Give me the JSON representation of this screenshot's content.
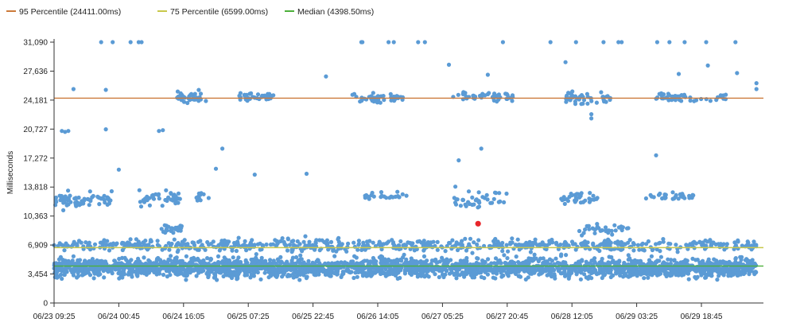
{
  "chart_data": {
    "type": "scatter",
    "title": "",
    "xlabel": "",
    "ylabel": "Milliseconds",
    "ylim": [
      0,
      31090
    ],
    "y_ticks": [
      "0",
      "3,454",
      "6,909",
      "10,363",
      "13,818",
      "17,272",
      "20,727",
      "24,181",
      "27,636",
      "31,090"
    ],
    "y_tick_values": [
      0,
      3454,
      6909,
      10363,
      13818,
      17272,
      20727,
      24181,
      27636,
      31090
    ],
    "x_ticks": [
      "06/23 09:25",
      "06/24 00:45",
      "06/24 16:05",
      "06/25 07:25",
      "06/25 22:45",
      "06/26 14:05",
      "06/27 05:25",
      "06/27 20:45",
      "06/28 12:05",
      "06/29 03:25",
      "06/29 18:45"
    ],
    "xlim_ticks": [
      0,
      10.85
    ],
    "grid": false,
    "legend_position": "top-left",
    "reference_lines": [
      {
        "name": "95 Percentile (24411.00ms)",
        "value": 24411.0,
        "color": "#cc7a3a"
      },
      {
        "name": "75 Percentile (6599.00ms)",
        "value": 6599.0,
        "color": "#c8c84a"
      },
      {
        "name": "Median (4398.50ms)",
        "value": 4398.5,
        "color": "#4caf3a"
      }
    ],
    "highlight_point": {
      "x_tick": 6.55,
      "y": 9450,
      "color": "#e8262b"
    },
    "point_color": "#5b9bd5",
    "series": [
      {
        "clusters": [
          {
            "x": [
              0,
              10.85
            ],
            "y_center": 4200,
            "y_spread": 1100,
            "count": 2600
          },
          {
            "x": [
              0,
              10.85
            ],
            "y_center": 6900,
            "y_spread": 700,
            "count": 650
          },
          {
            "x": [
              0,
              0.9
            ],
            "y_center": 12300,
            "y_spread": 900,
            "count": 70
          },
          {
            "x": [
              1.3,
              1.95
            ],
            "y_center": 12500,
            "y_spread": 900,
            "count": 45
          },
          {
            "x": [
              1.65,
              2.0
            ],
            "y_center": 8800,
            "y_spread": 500,
            "count": 30
          },
          {
            "x": [
              2.2,
              2.4
            ],
            "y_center": 12800,
            "y_spread": 500,
            "count": 10
          },
          {
            "x": [
              4.8,
              5.5
            ],
            "y_center": 12800,
            "y_spread": 400,
            "count": 25
          },
          {
            "x": [
              6.15,
              7.0
            ],
            "y_center": 12400,
            "y_spread": 1000,
            "count": 40
          },
          {
            "x": [
              7.8,
              8.4
            ],
            "y_center": 12500,
            "y_spread": 700,
            "count": 35
          },
          {
            "x": [
              8.1,
              8.9
            ],
            "y_center": 8800,
            "y_spread": 600,
            "count": 35
          },
          {
            "x": [
              9.1,
              9.9
            ],
            "y_center": 12700,
            "y_spread": 600,
            "count": 30
          },
          {
            "x": [
              1.9,
              2.35
            ],
            "y_center": 24400,
            "y_spread": 650,
            "count": 40
          },
          {
            "x": [
              2.85,
              3.4
            ],
            "y_center": 24500,
            "y_spread": 550,
            "count": 35
          },
          {
            "x": [
              4.6,
              5.4
            ],
            "y_center": 24500,
            "y_spread": 500,
            "count": 45
          },
          {
            "x": [
              6.15,
              7.1
            ],
            "y_center": 24600,
            "y_spread": 600,
            "count": 45
          },
          {
            "x": [
              7.9,
              8.6
            ],
            "y_center": 24400,
            "y_spread": 700,
            "count": 45
          },
          {
            "x": [
              9.25,
              10.4
            ],
            "y_center": 24500,
            "y_spread": 500,
            "count": 45
          },
          {
            "x": [
              0,
              10.85
            ],
            "y_center": 31090,
            "y_spread": 0,
            "count": 22
          }
        ],
        "extra_points": [
          {
            "x": 0.12,
            "y": 20500
          },
          {
            "x": 0.17,
            "y": 20400
          },
          {
            "x": 0.22,
            "y": 20500
          },
          {
            "x": 0.8,
            "y": 20700
          },
          {
            "x": 1.62,
            "y": 20500
          },
          {
            "x": 1.68,
            "y": 20600
          },
          {
            "x": 2.6,
            "y": 18400
          },
          {
            "x": 9.3,
            "y": 17600
          },
          {
            "x": 8.3,
            "y": 22500
          },
          {
            "x": 8.3,
            "y": 22000
          },
          {
            "x": 6.6,
            "y": 18400
          },
          {
            "x": 6.25,
            "y": 17000
          },
          {
            "x": 6.7,
            "y": 27200
          },
          {
            "x": 6.1,
            "y": 28400
          },
          {
            "x": 7.9,
            "y": 28700
          },
          {
            "x": 10.85,
            "y": 26200
          },
          {
            "x": 10.85,
            "y": 25500
          },
          {
            "x": 10.1,
            "y": 28300
          },
          {
            "x": 0.3,
            "y": 25500
          },
          {
            "x": 0.8,
            "y": 25400
          },
          {
            "x": 4.2,
            "y": 27000
          },
          {
            "x": 10.55,
            "y": 27400
          },
          {
            "x": 9.65,
            "y": 27300
          },
          {
            "x": 2.5,
            "y": 16000
          },
          {
            "x": 3.9,
            "y": 15400
          },
          {
            "x": 1.0,
            "y": 15900
          },
          {
            "x": 3.1,
            "y": 15300
          }
        ]
      }
    ]
  }
}
